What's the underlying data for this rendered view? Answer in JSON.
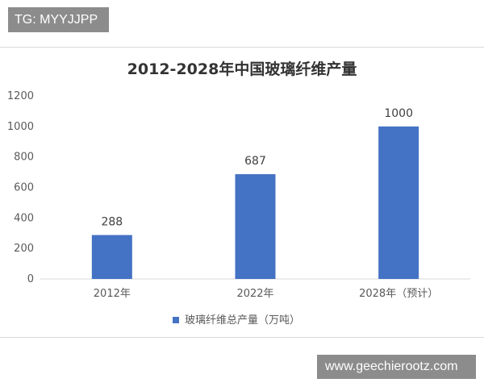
{
  "watermarks": {
    "top": "TG: MYYJJPP",
    "bottom": "www.geechierootz.com"
  },
  "colors": {
    "bar": "#4472c4",
    "axis": "#d9d9d9",
    "text": "#595959",
    "title": "#333333"
  },
  "chart_data": {
    "type": "bar",
    "title": "2012-2028年中国玻璃纤维产量",
    "categories": [
      "2012年",
      "2022年",
      "2028年（预计）"
    ],
    "series": [
      {
        "name": "玻璃纤维总产量（万吨）",
        "values": [
          288,
          687,
          1000
        ]
      }
    ],
    "data_labels": [
      "288",
      "687",
      "1000"
    ],
    "ylim": [
      0,
      1200
    ],
    "yticks": [
      0,
      200,
      400,
      600,
      800,
      1000,
      1200
    ],
    "grid": false,
    "legend_position": "bottom"
  }
}
